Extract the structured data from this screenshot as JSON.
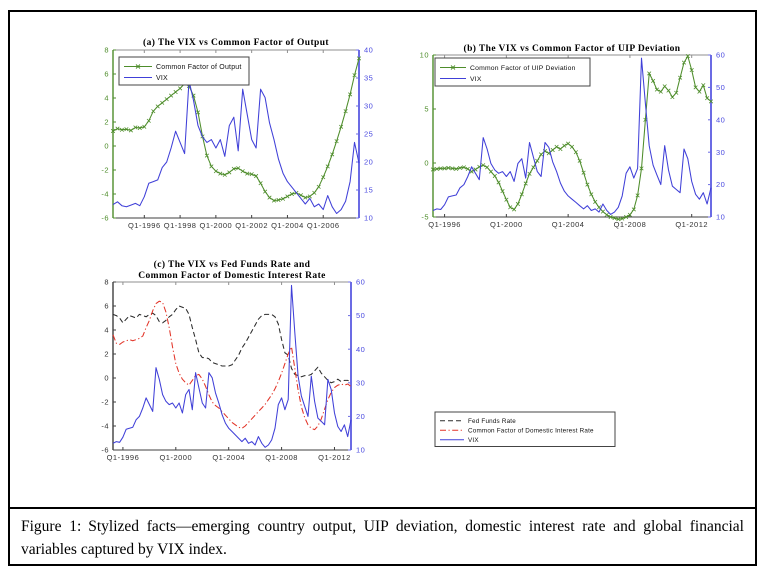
{
  "figure": {
    "caption_label": "Figure 1:",
    "caption_text": "Stylized facts—emerging country output, UIP deviation, domestic interest rate and global financial variables captured by VIX index."
  },
  "colors": {
    "green": "#4e8d2b",
    "blue": "#4040d8",
    "blue_axis": "#6b6be4",
    "blue_label": "#4b4be0",
    "red": "#e23428",
    "black_line": "#2b2b2b",
    "axis_dark": "#3f3f3f",
    "axis_gray": "#8f8f8f",
    "tick_label": "#333333",
    "legend_text": "#111111"
  },
  "chart_data": [
    {
      "type": "line",
      "title": "(a) The VIX vs Common Factor of Output",
      "x_start": "Q2-1994",
      "x_ticks": [
        "Q1-1996",
        "Q1-1998",
        "Q1-2000",
        "Q1-2002",
        "Q1-2004",
        "Q1-2006"
      ],
      "left_axis": {
        "range": [
          -6,
          8
        ],
        "ticks": [
          -6,
          -4,
          -2,
          0,
          2,
          4,
          6,
          8
        ],
        "color_key": "green"
      },
      "right_axis": {
        "range": [
          10,
          40
        ],
        "ticks": [
          10,
          15,
          20,
          25,
          30,
          35,
          40
        ],
        "color_key": "blue_axis"
      },
      "legend_position": "top-left-inside",
      "series": [
        {
          "name": "Common Factor of Output",
          "axis": "left",
          "color_key": "green",
          "style": "solid",
          "marker": "x",
          "values": [
            1.25,
            1.45,
            1.35,
            1.4,
            1.3,
            1.55,
            1.5,
            1.6,
            2.1,
            2.9,
            3.3,
            3.6,
            3.9,
            4.2,
            4.5,
            4.8,
            5.2,
            5.0,
            4.2,
            2.8,
            0.8,
            -0.8,
            -1.7,
            -2.1,
            -2.3,
            -2.4,
            -2.2,
            -1.9,
            -1.85,
            -2.1,
            -2.3,
            -2.35,
            -2.5,
            -3.1,
            -3.8,
            -4.3,
            -4.55,
            -4.5,
            -4.4,
            -4.2,
            -4.0,
            -3.9,
            -4.1,
            -4.3,
            -4.2,
            -3.9,
            -3.4,
            -2.6,
            -1.7,
            -0.7,
            0.4,
            1.6,
            2.9,
            4.3,
            5.9,
            7.3
          ]
        },
        {
          "name": "VIX",
          "axis": "right",
          "color_key": "blue",
          "style": "solid",
          "values": [
            12.4,
            12.9,
            12.2,
            12.0,
            12.3,
            12.6,
            12.2,
            13.8,
            16.2,
            16.5,
            16.8,
            19.0,
            20.0,
            22.5,
            25.5,
            23.5,
            21.5,
            34.5,
            31.0,
            26.5,
            24.5,
            23.5,
            24.0,
            22.5,
            24.0,
            21.0,
            26.5,
            28.0,
            22.0,
            33.0,
            28.5,
            24.0,
            22.5,
            33.0,
            31.5,
            27.0,
            24.0,
            20.5,
            18.0,
            16.5,
            15.5,
            14.5,
            13.5,
            12.5,
            13.5,
            12.0,
            12.5,
            11.5,
            14.0,
            12.0,
            10.8,
            11.5,
            13.0,
            16.5,
            23.5,
            19.8
          ]
        }
      ]
    },
    {
      "type": "line",
      "title": "(b) The VIX vs Common Factor of UIP Deviation",
      "x_start": "Q2-1995",
      "x_ticks": [
        "Q1-1996",
        "Q1-2000",
        "Q1-2004",
        "Q1-2008",
        "Q1-2012"
      ],
      "left_axis": {
        "range": [
          -5,
          10
        ],
        "ticks": [
          -5,
          0,
          5,
          10
        ],
        "color_key": "green"
      },
      "right_axis": {
        "range": [
          10,
          60
        ],
        "ticks": [
          10,
          20,
          30,
          40,
          50,
          60
        ],
        "color_key": "blue_axis"
      },
      "legend_position": "top-left-inside",
      "series": [
        {
          "name": "Common Factor of UIP Deviation",
          "axis": "left",
          "color_key": "green",
          "style": "solid",
          "marker": "x",
          "values": [
            -0.6,
            -0.55,
            -0.5,
            -0.5,
            -0.45,
            -0.5,
            -0.55,
            -0.45,
            -0.4,
            -0.55,
            -0.8,
            -0.6,
            -0.35,
            -0.2,
            -0.4,
            -0.8,
            -1.2,
            -1.8,
            -2.6,
            -3.4,
            -4.1,
            -4.3,
            -3.8,
            -2.9,
            -1.9,
            -1.0,
            -0.4,
            0.2,
            0.8,
            1.1,
            0.9,
            1.2,
            1.5,
            1.3,
            1.6,
            1.8,
            1.5,
            1.0,
            0.2,
            -0.9,
            -2.0,
            -2.9,
            -3.6,
            -4.1,
            -4.5,
            -4.8,
            -5.0,
            -5.1,
            -5.2,
            -5.15,
            -5.0,
            -4.8,
            -4.3,
            -3.0,
            -0.5,
            4.0,
            8.3,
            7.6,
            6.8,
            6.6,
            7.1,
            6.7,
            6.1,
            6.5,
            7.9,
            9.3,
            9.9,
            8.6,
            7.0,
            6.6,
            7.2,
            6.0,
            5.7
          ]
        },
        {
          "name": "VIX",
          "axis": "right",
          "color_key": "blue",
          "style": "solid",
          "values": [
            12.0,
            12.5,
            12.3,
            13.8,
            16.2,
            16.5,
            16.8,
            19.0,
            20.0,
            22.5,
            25.5,
            23.5,
            21.5,
            34.5,
            31.0,
            26.5,
            24.5,
            23.5,
            24.0,
            22.5,
            24.0,
            21.0,
            26.5,
            28.0,
            22.0,
            33.0,
            28.5,
            24.0,
            22.5,
            33.0,
            31.5,
            27.0,
            24.0,
            20.5,
            18.0,
            16.5,
            15.5,
            14.5,
            13.5,
            12.5,
            13.5,
            12.0,
            12.5,
            11.5,
            14.0,
            12.0,
            10.8,
            11.5,
            13.0,
            16.5,
            23.5,
            25.5,
            22.0,
            25.0,
            59.0,
            45.0,
            32.0,
            26.0,
            23.0,
            20.0,
            32.0,
            24.5,
            19.5,
            18.5,
            17.5,
            31.0,
            28.0,
            21.0,
            17.0,
            15.5,
            17.5,
            14.0,
            19.0
          ]
        }
      ]
    },
    {
      "type": "line",
      "title": "(c) The VIX vs Fed Funds Rate and\nCommon Factor of Domestic Interest Rate",
      "x_start": "Q2-1995",
      "x_ticks": [
        "Q1-1996",
        "Q1-2000",
        "Q1-2004",
        "Q1-2008",
        "Q1-2012"
      ],
      "left_axis": {
        "range": [
          -6,
          8
        ],
        "ticks": [
          -6,
          -4,
          -2,
          0,
          2,
          4,
          6,
          8
        ],
        "color_key": "axis_dark"
      },
      "right_axis": {
        "range": [
          10,
          60
        ],
        "ticks": [
          10,
          20,
          30,
          40,
          50,
          60
        ],
        "color_key": "blue_axis"
      },
      "legend_position": "outside-right-bottom",
      "series": [
        {
          "name": "Fed Funds Rate",
          "axis": "left",
          "color_key": "black_line",
          "style": "dashed",
          "values": [
            5.3,
            5.2,
            5.0,
            4.6,
            4.9,
            5.2,
            5.1,
            5.0,
            5.3,
            5.2,
            5.1,
            5.3,
            5.4,
            5.2,
            4.7,
            4.6,
            4.8,
            5.1,
            5.3,
            5.7,
            6.0,
            5.9,
            5.8,
            5.3,
            4.2,
            3.2,
            2.1,
            1.7,
            1.7,
            1.6,
            1.3,
            1.2,
            1.1,
            1.0,
            1.0,
            1.0,
            1.1,
            1.5,
            1.9,
            2.5,
            2.9,
            3.4,
            3.9,
            4.4,
            4.9,
            5.2,
            5.3,
            5.3,
            5.3,
            5.1,
            4.5,
            3.2,
            2.1,
            1.9,
            0.8,
            0.3,
            0.2,
            0.1,
            0.2,
            0.2,
            0.3,
            0.6,
            0.9,
            0.4,
            0.1,
            -0.2,
            -0.4,
            -0.3,
            -0.1,
            -0.3,
            -0.2,
            -0.2,
            -0.3
          ]
        },
        {
          "name": "Common Factor of Domestic Interest Rate",
          "axis": "left",
          "color_key": "red",
          "style": "dashdot",
          "values": [
            3.6,
            2.9,
            2.8,
            3.0,
            3.1,
            3.2,
            3.1,
            3.2,
            3.3,
            3.5,
            4.2,
            4.8,
            5.6,
            6.2,
            6.4,
            6.3,
            5.5,
            4.2,
            2.6,
            1.2,
            0.4,
            -0.1,
            -0.4,
            -0.6,
            -0.2,
            0.2,
            0.3,
            -0.1,
            -0.7,
            -1.4,
            -2.0,
            -2.3,
            -2.5,
            -2.8,
            -3.1,
            -3.4,
            -3.7,
            -3.9,
            -4.1,
            -4.2,
            -4.0,
            -3.7,
            -3.4,
            -3.1,
            -2.8,
            -2.5,
            -2.2,
            -1.8,
            -1.4,
            -0.9,
            -0.3,
            0.4,
            1.2,
            2.0,
            2.6,
            0.8,
            -1.0,
            -2.4,
            -3.3,
            -3.9,
            -4.2,
            -4.3,
            -4.0,
            -3.4,
            -2.6,
            -1.8,
            -1.2,
            -0.8,
            -0.6,
            -0.5,
            -0.6,
            -0.5,
            -0.7
          ]
        },
        {
          "name": "VIX",
          "axis": "right",
          "color_key": "blue",
          "style": "solid",
          "values": [
            12.0,
            12.5,
            12.3,
            13.8,
            16.2,
            16.5,
            16.8,
            19.0,
            20.0,
            22.5,
            25.5,
            23.5,
            21.5,
            34.5,
            31.0,
            26.5,
            24.5,
            23.5,
            24.0,
            22.5,
            24.0,
            21.0,
            26.5,
            28.0,
            22.0,
            33.0,
            28.5,
            24.0,
            22.5,
            33.0,
            31.5,
            27.0,
            24.0,
            20.5,
            18.0,
            16.5,
            15.5,
            14.5,
            13.5,
            12.5,
            13.5,
            12.0,
            12.5,
            11.5,
            14.0,
            12.0,
            10.8,
            11.5,
            13.0,
            16.5,
            23.5,
            25.5,
            22.0,
            25.0,
            59.0,
            45.0,
            32.0,
            26.0,
            23.0,
            20.0,
            32.0,
            24.5,
            19.5,
            18.5,
            17.5,
            31.0,
            28.0,
            21.0,
            17.0,
            15.5,
            17.5,
            14.0,
            19.0
          ]
        }
      ]
    }
  ]
}
